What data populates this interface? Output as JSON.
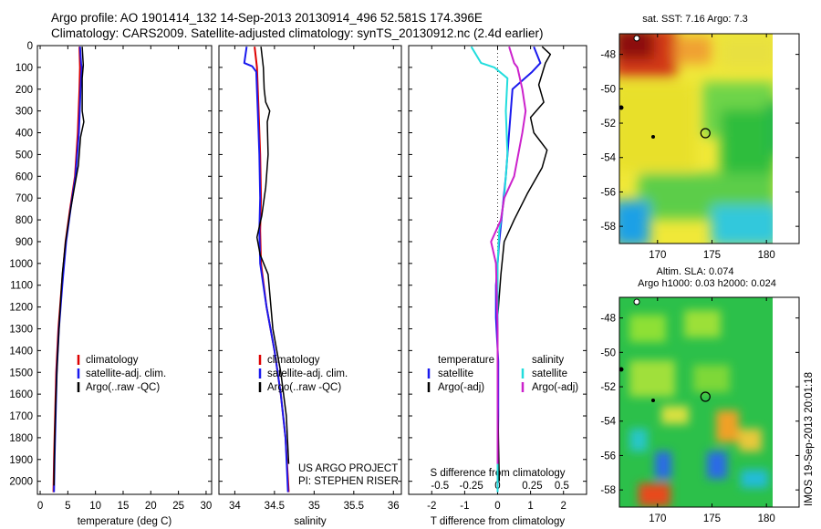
{
  "header": {
    "line1": "Argo profile: AO 1901414_132 14-Sep-2013 20130914_496 52.581S 174.396E",
    "line2": "Climatology: CARS2009. Satellite-adjusted climatology: synTS_20130912.nc (2.4d earlier)"
  },
  "depth_ticks": [
    0,
    100,
    200,
    300,
    400,
    500,
    600,
    700,
    800,
    900,
    1000,
    1100,
    1200,
    1300,
    1400,
    1500,
    1600,
    1700,
    1800,
    1900,
    2000
  ],
  "credit": {
    "line1": "US ARGO PROJECT",
    "line2": "PI: STEPHEN RISER"
  },
  "watermark": "IMOS 19-Sep-2013 20:01:18",
  "colors": {
    "climatology": "#dd0000",
    "satellite": "#1a1aee",
    "argo": "#000000",
    "sat_salinity": "#22dddd",
    "argo_salinity": "#cc22cc"
  },
  "chart_data": [
    {
      "type": "line",
      "xlabel": "temperature (deg C)",
      "ylabel": "",
      "xlim": [
        -0.5,
        31
      ],
      "ylim": [
        2060,
        0
      ],
      "xticks": [
        0,
        5,
        10,
        15,
        20,
        25,
        30
      ],
      "legend": {
        "placement": "bottom-center",
        "entries": [
          "climatology",
          "satellite-adj. clim.",
          "Argo(..raw -QC)"
        ]
      },
      "series": [
        {
          "name": "climatology",
          "color": "#dd0000",
          "width": 2,
          "points": [
            [
              7.1,
              5
            ],
            [
              7.2,
              100
            ],
            [
              7.1,
              200
            ],
            [
              6.8,
              400
            ],
            [
              6.3,
              600
            ],
            [
              5.4,
              750
            ],
            [
              4.6,
              900
            ],
            [
              3.9,
              1100
            ],
            [
              3.3,
              1300
            ],
            [
              2.9,
              1500
            ],
            [
              2.7,
              1700
            ],
            [
              2.5,
              1900
            ],
            [
              2.4,
              2050
            ]
          ]
        },
        {
          "name": "satellite-adj. clim.",
          "color": "#1a1aee",
          "width": 2,
          "points": [
            [
              7.2,
              5
            ],
            [
              7.4,
              80
            ],
            [
              7.5,
              100
            ],
            [
              7.3,
              200
            ],
            [
              7.0,
              400
            ],
            [
              6.4,
              600
            ],
            [
              5.5,
              750
            ],
            [
              4.7,
              900
            ],
            [
              4.0,
              1100
            ],
            [
              3.4,
              1300
            ],
            [
              3.0,
              1500
            ],
            [
              2.8,
              1700
            ],
            [
              2.6,
              1900
            ],
            [
              2.5,
              2050
            ]
          ]
        },
        {
          "name": "Argo(..raw -QC)",
          "color": "#000000",
          "width": 1.5,
          "points": [
            [
              7.6,
              5
            ],
            [
              7.8,
              90
            ],
            [
              7.6,
              150
            ],
            [
              7.6,
              300
            ],
            [
              7.9,
              350
            ],
            [
              7.3,
              420
            ],
            [
              6.9,
              550
            ],
            [
              6.2,
              650
            ],
            [
              5.3,
              780
            ],
            [
              4.6,
              900
            ],
            [
              4.0,
              1050
            ],
            [
              3.5,
              1250
            ],
            [
              3.1,
              1450
            ],
            [
              2.8,
              1650
            ],
            [
              2.6,
              1850
            ],
            [
              2.5,
              2020
            ]
          ]
        }
      ]
    },
    {
      "type": "line",
      "xlabel": "salinity",
      "ylabel": "",
      "xlim": [
        33.8,
        36.1
      ],
      "ylim": [
        2060,
        0
      ],
      "xticks": [
        34,
        34.5,
        35,
        35.5,
        36
      ],
      "legend": {
        "placement": "bottom-center",
        "entries": [
          "climatology",
          "satellite-adj. clim.",
          "Argo(..raw -QC)"
        ]
      },
      "series": [
        {
          "name": "climatology",
          "color": "#dd0000",
          "width": 2,
          "points": [
            [
              34.25,
              5
            ],
            [
              34.28,
              100
            ],
            [
              34.3,
              300
            ],
            [
              34.32,
              500
            ],
            [
              34.33,
              700
            ],
            [
              34.32,
              850
            ],
            [
              34.33,
              1000
            ],
            [
              34.4,
              1200
            ],
            [
              34.5,
              1400
            ],
            [
              34.58,
              1600
            ],
            [
              34.64,
              1800
            ],
            [
              34.68,
              2050
            ]
          ]
        },
        {
          "name": "satellite-adj. clim.",
          "color": "#1a1aee",
          "width": 2,
          "points": [
            [
              34.15,
              5
            ],
            [
              34.12,
              80
            ],
            [
              34.22,
              95
            ],
            [
              34.27,
              120
            ],
            [
              34.29,
              300
            ],
            [
              34.31,
              500
            ],
            [
              34.32,
              700
            ],
            [
              34.31,
              850
            ],
            [
              34.32,
              1000
            ],
            [
              34.4,
              1200
            ],
            [
              34.5,
              1400
            ],
            [
              34.58,
              1600
            ],
            [
              34.64,
              1800
            ],
            [
              34.67,
              2050
            ]
          ]
        },
        {
          "name": "Argo(..raw -QC)",
          "color": "#000000",
          "width": 1.5,
          "points": [
            [
              34.33,
              5
            ],
            [
              34.36,
              100
            ],
            [
              34.37,
              200
            ],
            [
              34.39,
              260
            ],
            [
              34.44,
              300
            ],
            [
              34.41,
              350
            ],
            [
              34.42,
              500
            ],
            [
              34.39,
              650
            ],
            [
              34.34,
              780
            ],
            [
              34.28,
              880
            ],
            [
              34.32,
              960
            ],
            [
              34.42,
              1050
            ],
            [
              34.48,
              1300
            ],
            [
              34.58,
              1500
            ],
            [
              34.65,
              1700
            ],
            [
              34.68,
              1920
            ]
          ]
        }
      ]
    },
    {
      "type": "line",
      "xlabel": "T difference from climatology",
      "xlabel2": "S difference from climatology",
      "ylabel": "",
      "xlim": [
        -2.7,
        2.7
      ],
      "ylim": [
        2060,
        0
      ],
      "xticks": [
        -2,
        -1,
        0,
        1,
        2
      ],
      "xticks_s": [
        "-0.5",
        "-0.25",
        "0",
        "0.25",
        "0.5"
      ],
      "legend": {
        "placement": "bottom",
        "groups": [
          {
            "title": "temperature",
            "entries": [
              "satellite",
              "Argo(-adj)"
            ]
          },
          {
            "title": "salinity",
            "entries": [
              "satellite",
              "Argo(-adj)"
            ]
          }
        ]
      },
      "series": [
        {
          "name": "temperature satellite",
          "color": "#1a1aee",
          "width": 2,
          "points": [
            [
              1.1,
              5
            ],
            [
              1.3,
              80
            ],
            [
              1.05,
              120
            ],
            [
              0.45,
              200
            ],
            [
              0.35,
              400
            ],
            [
              0.25,
              600
            ],
            [
              0.15,
              750
            ],
            [
              0.05,
              900
            ],
            [
              -0.05,
              1100
            ],
            [
              -0.05,
              1250
            ],
            [
              0.02,
              1450
            ],
            [
              0.02,
              1700
            ],
            [
              0.0,
              2050
            ]
          ]
        },
        {
          "name": "temperature Argo(-adj)",
          "color": "#000000",
          "width": 1.5,
          "points": [
            [
              1.35,
              5
            ],
            [
              1.6,
              40
            ],
            [
              1.45,
              80
            ],
            [
              1.25,
              180
            ],
            [
              1.4,
              260
            ],
            [
              1.0,
              330
            ],
            [
              1.1,
              400
            ],
            [
              1.5,
              480
            ],
            [
              1.35,
              560
            ],
            [
              0.9,
              680
            ],
            [
              0.5,
              800
            ],
            [
              0.2,
              900
            ],
            [
              0.1,
              1050
            ],
            [
              0.0,
              1250
            ],
            [
              0.0,
              1600
            ],
            [
              0.05,
              2000
            ]
          ]
        },
        {
          "name": "salinity satellite",
          "color": "#22dddd",
          "width": 2,
          "points": [
            [
              -0.8,
              5
            ],
            [
              -0.5,
              80
            ],
            [
              -0.1,
              100
            ],
            [
              0.3,
              150
            ],
            [
              0.25,
              300
            ],
            [
              0.3,
              500
            ],
            [
              0.2,
              700
            ],
            [
              0.05,
              850
            ],
            [
              0.0,
              1000
            ],
            [
              0.0,
              1200
            ],
            [
              0.0,
              1500
            ],
            [
              0.0,
              2050
            ]
          ]
        },
        {
          "name": "salinity Argo(-adj)",
          "color": "#cc22cc",
          "width": 2,
          "points": [
            [
              0.35,
              5
            ],
            [
              0.5,
              80
            ],
            [
              0.6,
              100
            ],
            [
              0.75,
              200
            ],
            [
              0.85,
              300
            ],
            [
              0.75,
              400
            ],
            [
              0.5,
              600
            ],
            [
              0.2,
              700
            ],
            [
              0.1,
              800
            ],
            [
              -0.2,
              900
            ],
            [
              -0.05,
              1000
            ],
            [
              0.0,
              1300
            ],
            [
              0.0,
              1920
            ]
          ]
        }
      ]
    },
    {
      "type": "heatmap",
      "title": "sat. SST: 7.16 Argo: 7.3",
      "xlim": [
        166.5,
        183
      ],
      "ylim": [
        -59,
        -46.8
      ],
      "xticks": [
        170,
        175,
        180
      ],
      "yticks": [
        -48,
        -50,
        -52,
        -54,
        -56,
        -58
      ],
      "marker": [
        174.396,
        -52.581
      ]
    },
    {
      "type": "heatmap",
      "title": "Altim. SLA: 0.074",
      "subtitle": "Argo h1000: 0.03 h2000: 0.024",
      "xlim": [
        166.5,
        183
      ],
      "ylim": [
        -59,
        -46.8
      ],
      "xticks": [
        170,
        175,
        180
      ],
      "yticks": [
        -48,
        -50,
        -52,
        -54,
        -56,
        -58
      ],
      "marker": [
        174.396,
        -52.581
      ]
    }
  ]
}
